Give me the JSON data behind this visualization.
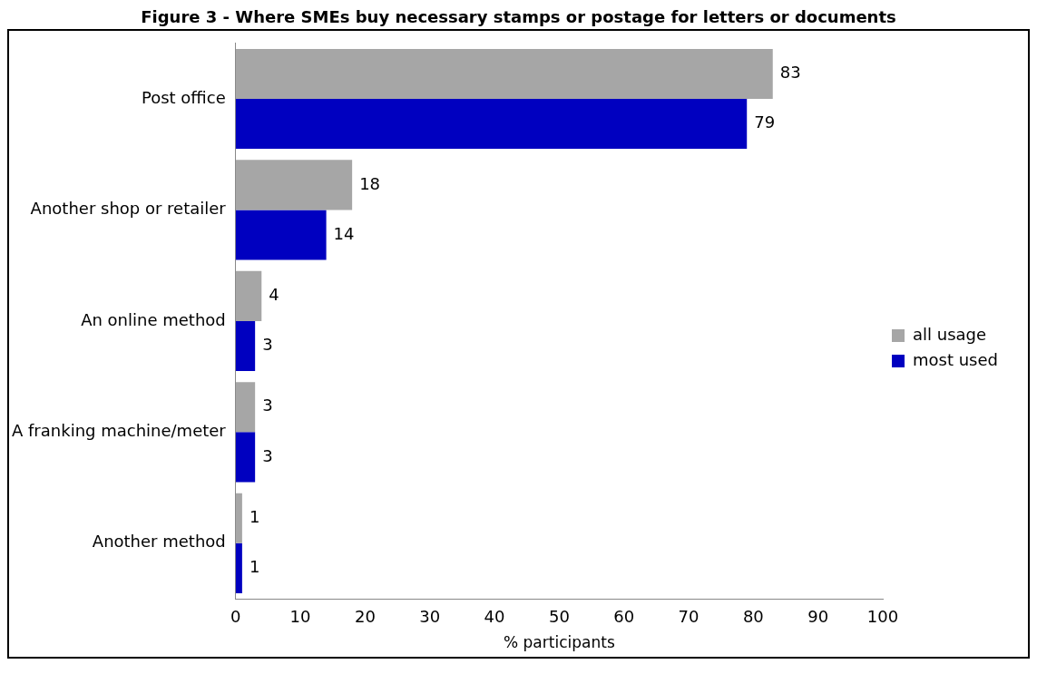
{
  "chart_data": {
    "type": "bar",
    "orientation": "horizontal",
    "title": "Figure 3 - Where SMEs buy necessary stamps or postage for letters or documents",
    "xlabel": "% participants",
    "categories": [
      "Post office",
      "Another shop or retailer",
      "An online method",
      "A franking machine/meter",
      "Another method"
    ],
    "series": [
      {
        "name": "all usage",
        "color": "#a6a6a6",
        "values": [
          83,
          18,
          4,
          3,
          1
        ]
      },
      {
        "name": "most used",
        "color": "#0000c0",
        "values": [
          79,
          14,
          3,
          3,
          1
        ]
      }
    ],
    "xlim": [
      0,
      100
    ],
    "xticks": [
      0,
      10,
      20,
      30,
      40,
      50,
      60,
      70,
      80,
      90,
      100
    ],
    "grid": false,
    "legend": "right",
    "data_labels": true
  }
}
